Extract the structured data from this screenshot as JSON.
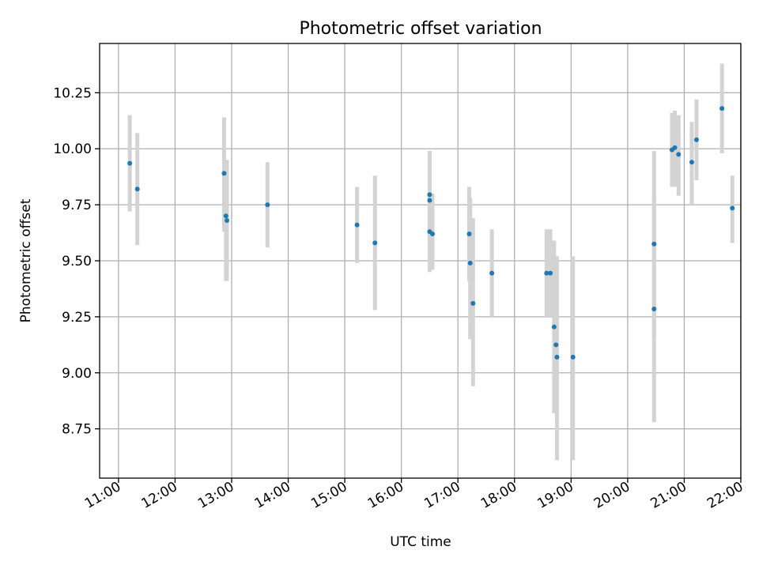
{
  "chart_data": {
    "type": "scatter",
    "title": "Photometric offset variation",
    "xlabel": "UTC time",
    "ylabel": "Photometric offset",
    "grid": true,
    "xlim": [
      "10:40",
      "22:00"
    ],
    "ylim": [
      8.53,
      10.47
    ],
    "x_ticks": [
      "11:00",
      "12:00",
      "13:00",
      "14:00",
      "15:00",
      "16:00",
      "17:00",
      "18:00",
      "19:00",
      "20:00",
      "21:00",
      "22:00"
    ],
    "y_ticks": [
      8.75,
      9.0,
      9.25,
      9.5,
      9.75,
      10.0,
      10.25
    ],
    "error_color": "#d3d3d3",
    "point_color": "#1f77b4",
    "points": [
      {
        "x": "11:12",
        "y": 9.935,
        "ylo": 9.72,
        "yhi": 10.15
      },
      {
        "x": "11:20",
        "y": 9.82,
        "ylo": 9.57,
        "yhi": 10.07
      },
      {
        "x": "12:52",
        "y": 9.89,
        "ylo": 9.63,
        "yhi": 10.14
      },
      {
        "x": "12:54",
        "y": 9.7,
        "ylo": 9.41,
        "yhi": 9.95
      },
      {
        "x": "12:55",
        "y": 9.68,
        "ylo": 9.41,
        "yhi": 9.95
      },
      {
        "x": "13:38",
        "y": 9.75,
        "ylo": 9.56,
        "yhi": 9.94
      },
      {
        "x": "15:13",
        "y": 9.66,
        "ylo": 9.49,
        "yhi": 9.83
      },
      {
        "x": "15:32",
        "y": 9.58,
        "ylo": 9.28,
        "yhi": 9.88
      },
      {
        "x": "16:30",
        "y": 9.795,
        "ylo": 9.6,
        "yhi": 9.99
      },
      {
        "x": "16:30",
        "y": 9.77,
        "ylo": 9.45,
        "yhi": 9.99
      },
      {
        "x": "16:30",
        "y": 9.63,
        "ylo": 9.45,
        "yhi": 9.8
      },
      {
        "x": "16:33",
        "y": 9.62,
        "ylo": 9.46,
        "yhi": 9.8
      },
      {
        "x": "17:12",
        "y": 9.62,
        "ylo": 9.41,
        "yhi": 9.83
      },
      {
        "x": "17:13",
        "y": 9.49,
        "ylo": 9.15,
        "yhi": 9.78
      },
      {
        "x": "17:16",
        "y": 9.31,
        "ylo": 8.94,
        "yhi": 9.69
      },
      {
        "x": "17:36",
        "y": 9.445,
        "ylo": 9.25,
        "yhi": 9.64
      },
      {
        "x": "18:34",
        "y": 9.445,
        "ylo": 9.25,
        "yhi": 9.64
      },
      {
        "x": "18:38",
        "y": 9.445,
        "ylo": 9.25,
        "yhi": 9.64
      },
      {
        "x": "18:42",
        "y": 9.205,
        "ylo": 8.82,
        "yhi": 9.59
      },
      {
        "x": "18:44",
        "y": 9.125,
        "ylo": 8.82,
        "yhi": 9.52
      },
      {
        "x": "18:45",
        "y": 9.07,
        "ylo": 8.61,
        "yhi": 9.52
      },
      {
        "x": "19:02",
        "y": 9.07,
        "ylo": 8.61,
        "yhi": 9.52
      },
      {
        "x": "20:28",
        "y": 9.575,
        "ylo": 9.16,
        "yhi": 9.99
      },
      {
        "x": "20:28",
        "y": 9.285,
        "ylo": 8.78,
        "yhi": 9.79
      },
      {
        "x": "20:47",
        "y": 9.995,
        "ylo": 9.83,
        "yhi": 10.16
      },
      {
        "x": "20:50",
        "y": 10.005,
        "ylo": 9.83,
        "yhi": 10.17
      },
      {
        "x": "20:54",
        "y": 9.975,
        "ylo": 9.79,
        "yhi": 10.15
      },
      {
        "x": "21:08",
        "y": 9.94,
        "ylo": 9.75,
        "yhi": 10.12
      },
      {
        "x": "21:13",
        "y": 10.04,
        "ylo": 9.86,
        "yhi": 10.22
      },
      {
        "x": "21:40",
        "y": 10.18,
        "ylo": 9.98,
        "yhi": 10.38
      },
      {
        "x": "21:51",
        "y": 9.735,
        "ylo": 9.58,
        "yhi": 9.88
      }
    ]
  }
}
